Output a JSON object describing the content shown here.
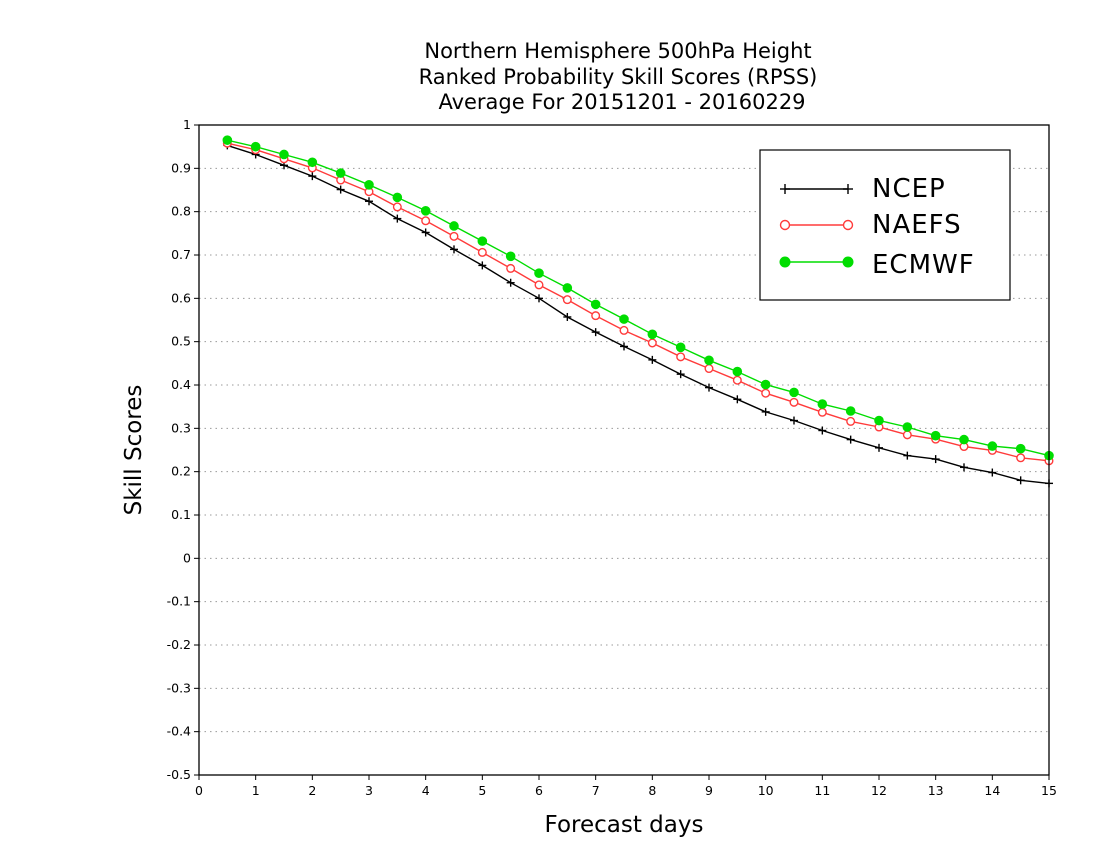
{
  "chart_data": {
    "type": "line",
    "title_lines": [
      "Northern Hemisphere 500hPa Height",
      "Ranked Probability Skill Scores (RPSS)",
      "Average For 20151201 - 20160229"
    ],
    "xlabel": "Forecast days",
    "ylabel": "Skill Scores",
    "xlim": [
      0,
      15
    ],
    "ylim": [
      -0.5,
      1
    ],
    "x_ticks": [
      "0",
      "1",
      "2",
      "3",
      "4",
      "5",
      "6",
      "7",
      "8",
      "9",
      "10",
      "11",
      "12",
      "13",
      "14",
      "15"
    ],
    "y_ticks": [
      "1",
      "0.9",
      "0.8",
      "0.7",
      "0.6",
      "0.5",
      "0.4",
      "0.3",
      "0.2",
      "0.1",
      "0",
      "-0.1",
      "-0.2",
      "-0.3",
      "-0.4",
      "-0.5"
    ],
    "grid": "horizontal dotted",
    "legend_position": "top-right",
    "x": [
      0.5,
      1,
      1.5,
      2,
      2.5,
      3,
      3.5,
      4,
      4.5,
      5,
      5.5,
      6,
      6.5,
      7,
      7.5,
      8,
      8.5,
      9,
      9.5,
      10,
      10.5,
      11,
      11.5,
      12,
      12.5,
      13,
      13.5,
      14,
      14.5,
      15
    ],
    "series": [
      {
        "name": "NCEP",
        "color": "#000000",
        "marker": "plus",
        "values": [
          0.953,
          0.932,
          0.907,
          0.882,
          0.851,
          0.824,
          0.784,
          0.752,
          0.713,
          0.676,
          0.636,
          0.6,
          0.557,
          0.522,
          0.489,
          0.458,
          0.425,
          0.394,
          0.367,
          0.338,
          0.318,
          0.295,
          0.274,
          0.255,
          0.237,
          0.229,
          0.21,
          0.198,
          0.18,
          0.173
        ]
      },
      {
        "name": "NAEFS",
        "color": "#ff3b3b",
        "marker": "open-circle",
        "values": [
          0.958,
          0.943,
          0.922,
          0.901,
          0.873,
          0.846,
          0.811,
          0.779,
          0.743,
          0.706,
          0.669,
          0.631,
          0.597,
          0.56,
          0.526,
          0.497,
          0.465,
          0.438,
          0.411,
          0.381,
          0.36,
          0.337,
          0.316,
          0.303,
          0.285,
          0.275,
          0.258,
          0.249,
          0.232,
          0.225
        ]
      },
      {
        "name": "ECMWF",
        "color": "#00dd00",
        "marker": "filled-circle",
        "values": [
          0.965,
          0.95,
          0.932,
          0.914,
          0.889,
          0.862,
          0.833,
          0.802,
          0.767,
          0.732,
          0.697,
          0.658,
          0.624,
          0.586,
          0.552,
          0.517,
          0.487,
          0.457,
          0.431,
          0.401,
          0.383,
          0.356,
          0.34,
          0.318,
          0.303,
          0.283,
          0.274,
          0.259,
          0.253,
          0.237
        ]
      }
    ]
  }
}
